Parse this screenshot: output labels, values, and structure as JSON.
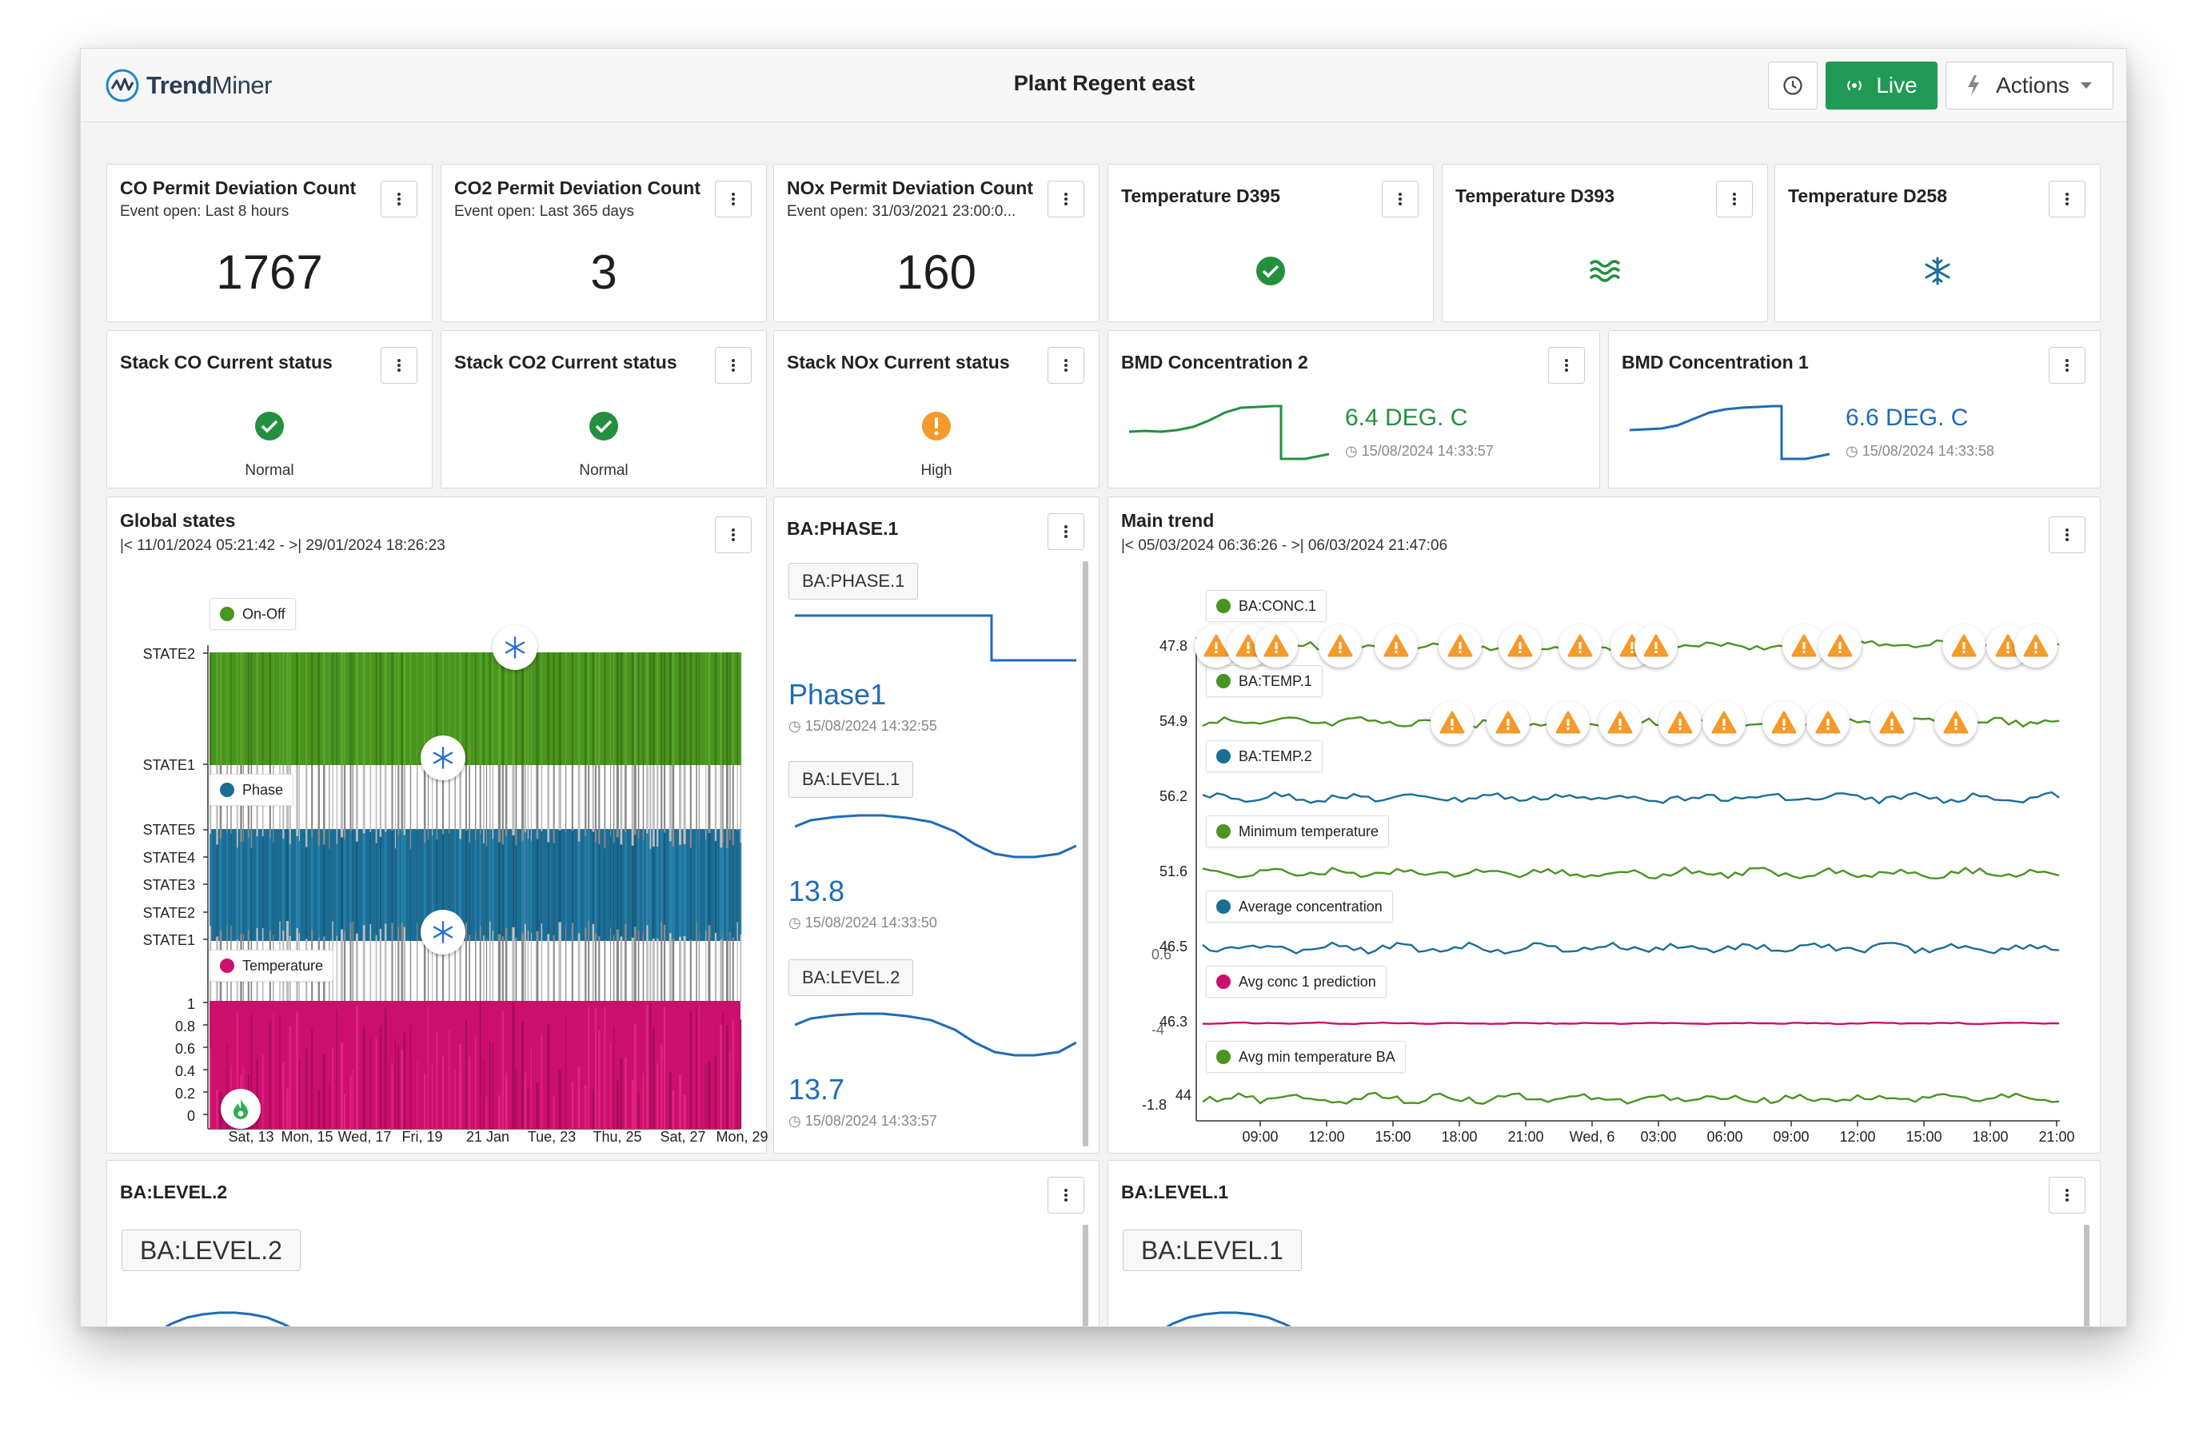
{
  "app": {
    "logo_text_bold": "Trend",
    "logo_text_light": "Miner",
    "title": "Plant Regent east"
  },
  "header": {
    "live_label": "Live",
    "actions_label": "Actions"
  },
  "colors": {
    "green": "#23903f",
    "blue": "#1e6bb8",
    "teal": "#1a6e96",
    "magenta": "#cc0f6d",
    "orange": "#f59a2b",
    "live": "#219a56",
    "trend_green": "#4a9420"
  },
  "kpis": [
    {
      "title": "CO Permit Deviation Count",
      "subtitle": "Event open: Last 8 hours",
      "value": "1767"
    },
    {
      "title": "CO2 Permit Deviation Count",
      "subtitle": "Event open: Last 365 days",
      "value": "3"
    },
    {
      "title": "NOx Permit Deviation Count",
      "subtitle": "Event open: 31/03/2021 23:00:0...",
      "value": "160"
    }
  ],
  "temps": [
    {
      "title": "Temperature D395",
      "icon": "check-circle-icon"
    },
    {
      "title": "Temperature D393",
      "icon": "waves-icon"
    },
    {
      "title": "Temperature D258",
      "icon": "snowflake-icon"
    }
  ],
  "stacks": [
    {
      "title": "Stack CO Current status",
      "status": "Normal",
      "icon": "check-circle-icon"
    },
    {
      "title": "Stack CO2 Current status",
      "status": "Normal",
      "icon": "check-circle-icon"
    },
    {
      "title": "Stack NOx Current status",
      "status": "High",
      "icon": "exclamation-circle-icon"
    }
  ],
  "bmd": [
    {
      "title": "BMD Concentration 2",
      "value": "6.4 DEG. C",
      "time": "15/08/2024 14:33:57"
    },
    {
      "title": "BMD Concentration 1",
      "value": "6.6 DEG. C",
      "time": "15/08/2024 14:33:58"
    }
  ],
  "global_states": {
    "title": "Global states",
    "range": "|< 11/01/2024 05:21:42 - >| 29/01/2024 18:26:23",
    "legends": [
      "On-Off",
      "Phase",
      "Temperature"
    ],
    "y_labels_onoff": [
      "STATE2",
      "STATE1"
    ],
    "y_labels_phase": [
      "STATE5",
      "STATE4",
      "STATE3",
      "STATE2",
      "STATE1"
    ],
    "y_labels_temp": [
      "1",
      "0.8",
      "0.6",
      "0.4",
      "0.2",
      "0"
    ],
    "x_labels": [
      "Sat, 13",
      "Mon, 15",
      "Wed, 17",
      "Fri, 19",
      "21 Jan",
      "Tue, 23",
      "Thu, 25",
      "Sat, 27",
      "Mon, 29"
    ]
  },
  "phase_panel": {
    "title": "BA:PHASE.1",
    "items": [
      {
        "tag": "BA:PHASE.1",
        "value": "Phase1",
        "time": "15/08/2024 14:32:55"
      },
      {
        "tag": "BA:LEVEL.1",
        "value": "13.8",
        "time": "15/08/2024 14:33:50"
      },
      {
        "tag": "BA:LEVEL.2",
        "value": "13.7",
        "time": "15/08/2024 14:33:57"
      }
    ]
  },
  "main_trend": {
    "title": "Main trend",
    "range": "|< 05/03/2024 06:36:26 - >| 06/03/2024 21:47:06",
    "series": [
      {
        "name": "BA:CONC.1",
        "color": "#4a9420",
        "label": "47.8"
      },
      {
        "name": "BA:TEMP.1",
        "color": "#4a9420",
        "label": "54.9"
      },
      {
        "name": "BA:TEMP.2",
        "color": "#1a6e96",
        "label": "56.2"
      },
      {
        "name": "Minimum temperature",
        "color": "#4a9420",
        "label": "51.6"
      },
      {
        "name": "Average concentration",
        "color": "#1a6e96",
        "label": "46.5"
      },
      {
        "name": "Avg conc 1 prediction",
        "color": "#cc0f6d",
        "label": "46.3"
      },
      {
        "name": "Avg min temperature BA",
        "color": "#4a9420",
        "label": "44"
      }
    ],
    "extra_labels": [
      "0.6",
      "-4",
      "-1.8"
    ],
    "x_labels": [
      "09:00",
      "12:00",
      "15:00",
      "18:00",
      "21:00",
      "Wed, 6",
      "03:00",
      "06:00",
      "09:00",
      "12:00",
      "15:00",
      "18:00",
      "21:00"
    ]
  },
  "bottom": [
    {
      "title": "BA:LEVEL.2",
      "tag": "BA:LEVEL.2"
    },
    {
      "title": "BA:LEVEL.1",
      "tag": "BA:LEVEL.1"
    }
  ]
}
